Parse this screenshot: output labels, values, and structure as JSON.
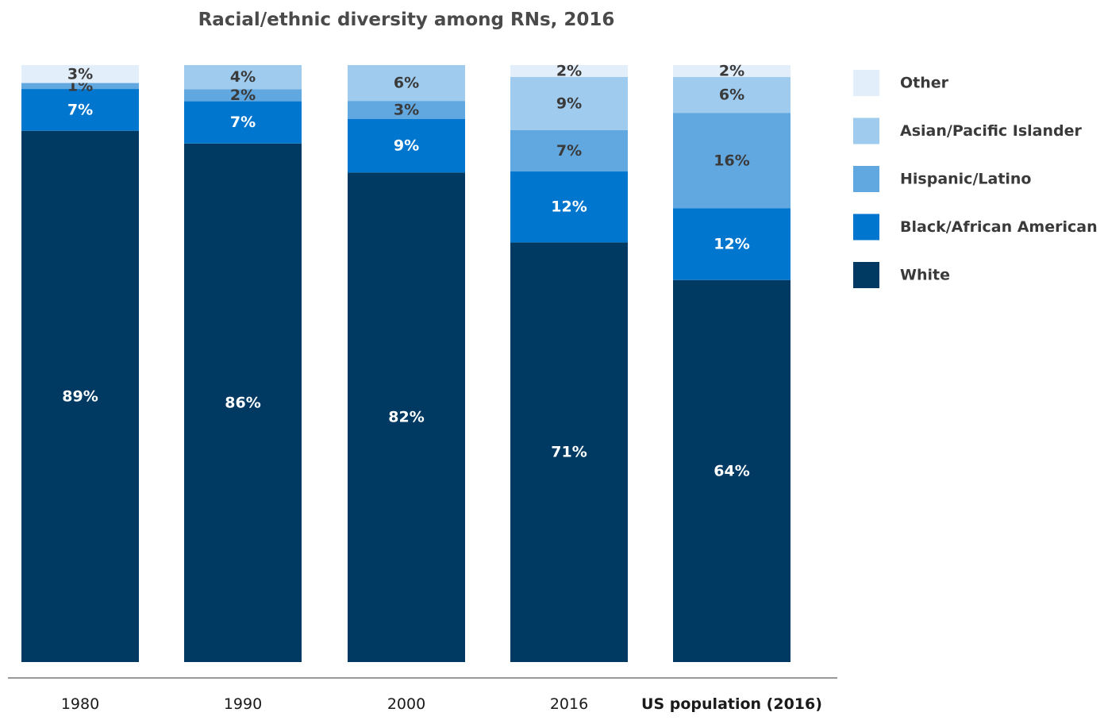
{
  "chart_data": {
    "type": "bar",
    "stacked": true,
    "title": "Racial/ethnic diversity among RNs, 2016",
    "xlabel": "",
    "ylabel": "",
    "ylim": [
      0,
      100
    ],
    "grid": false,
    "legend_position": "right",
    "categories": [
      "1980",
      "1990",
      "2000",
      "2016",
      "US population (2016)"
    ],
    "series": [
      {
        "name": "White",
        "color": "#003a63",
        "label_color": "#ffffff",
        "values": [
          89,
          86,
          82,
          71,
          64
        ]
      },
      {
        "name": "Black/African American",
        "color": "#0076ce",
        "label_color": "#ffffff",
        "values": [
          7,
          7,
          9,
          12,
          12
        ]
      },
      {
        "name": "Hispanic/Latino",
        "color": "#62a8e0",
        "label_color": "#3a3a3a",
        "values": [
          1,
          2,
          3,
          7,
          16
        ]
      },
      {
        "name": "Asian/Pacific Islander",
        "color": "#9ecbee",
        "label_color": "#3a3a3a",
        "values": [
          0,
          4,
          6,
          9,
          6
        ]
      },
      {
        "name": "Other",
        "color": "#e2eef9",
        "label_color": "#3a3a3a",
        "values": [
          3,
          0,
          0,
          2,
          2
        ]
      }
    ],
    "legend_order": [
      "Other",
      "Asian/Pacific Islander",
      "Hispanic/Latino",
      "Black/African American",
      "White"
    ]
  }
}
